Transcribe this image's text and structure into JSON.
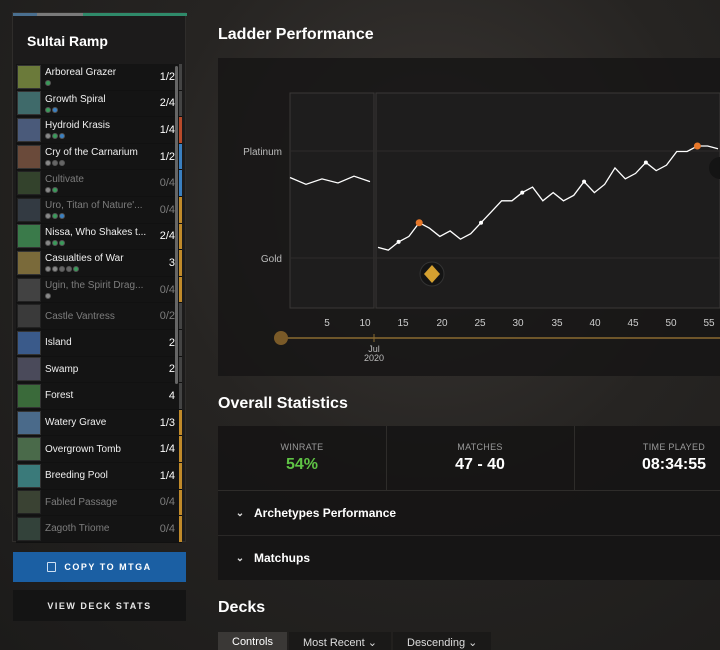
{
  "deck": {
    "title": "Sultai Ramp",
    "cards": [
      {
        "name": "Arboreal Grazer",
        "count": "1/2",
        "pips": [
          "#3a9a5a"
        ],
        "thumb": "#6b7a3a",
        "stripe": "#444",
        "dim": false
      },
      {
        "name": "Growth Spiral",
        "count": "2/4",
        "pips": [
          "#3a9a5a",
          "#3a7fc0"
        ],
        "thumb": "#3f6a6a",
        "stripe": "#444",
        "dim": false
      },
      {
        "name": "Hydroid Krasis",
        "count": "1/4",
        "pips": [
          "#888",
          "#3a9a5a",
          "#3a7fc0"
        ],
        "thumb": "#4a5a7a",
        "stripe": "#b84a2a",
        "dim": false
      },
      {
        "name": "Cry of the Carnarium",
        "count": "1/2",
        "pips": [
          "#888",
          "#666",
          "#666"
        ],
        "thumb": "#6a4a3a",
        "stripe": "#3a7fc0",
        "dim": false
      },
      {
        "name": "Cultivate",
        "count": "0/4",
        "pips": [
          "#888",
          "#3a9a5a"
        ],
        "thumb": "#5a7a4a",
        "stripe": "#3a7fc0",
        "dim": true
      },
      {
        "name": "Uro, Titan of Nature'...",
        "count": "0/4",
        "pips": [
          "#888",
          "#3a9a5a",
          "#3a7fc0"
        ],
        "thumb": "#5a6a7a",
        "stripe": "#c08a2a",
        "dim": true
      },
      {
        "name": "Nissa, Who Shakes t...",
        "count": "2/4",
        "pips": [
          "#888",
          "#3a9a5a",
          "#3a9a5a"
        ],
        "thumb": "#3a7a4a",
        "stripe": "#c08a2a",
        "dim": false
      },
      {
        "name": "Casualties of War",
        "count": "3",
        "pips": [
          "#888",
          "#888",
          "#666",
          "#666",
          "#3a9a5a"
        ],
        "thumb": "#7a6a3a",
        "stripe": "#c08a2a",
        "dim": false
      },
      {
        "name": "Ugin, the Spirit Drag...",
        "count": "0/4",
        "pips": [
          "#888"
        ],
        "thumb": "#7a7a7a",
        "stripe": "#c08a2a",
        "dim": true
      },
      {
        "name": "Castle Vantress",
        "count": "0/2",
        "pips": [],
        "thumb": "#6a6a6a",
        "stripe": "#444",
        "dim": true
      },
      {
        "name": "Island",
        "count": "2",
        "pips": [],
        "thumb": "#3a5a8a",
        "stripe": "#444",
        "dim": false
      },
      {
        "name": "Swamp",
        "count": "2",
        "pips": [],
        "thumb": "#4a4a5a",
        "stripe": "#444",
        "dim": false
      },
      {
        "name": "Forest",
        "count": "4",
        "pips": [],
        "thumb": "#3a6a3a",
        "stripe": "#444",
        "dim": false
      },
      {
        "name": "Watery Grave",
        "count": "1/3",
        "pips": [],
        "thumb": "#4a6a8a",
        "stripe": "#c08a2a",
        "dim": false
      },
      {
        "name": "Overgrown Tomb",
        "count": "1/4",
        "pips": [],
        "thumb": "#4a6a4a",
        "stripe": "#c08a2a",
        "dim": false
      },
      {
        "name": "Breeding Pool",
        "count": "1/4",
        "pips": [],
        "thumb": "#3a7a7a",
        "stripe": "#c08a2a",
        "dim": false
      },
      {
        "name": "Fabled Passage",
        "count": "0/4",
        "pips": [],
        "thumb": "#6a7a5a",
        "stripe": "#c08a2a",
        "dim": true
      },
      {
        "name": "Zagoth Triome",
        "count": "0/4",
        "pips": [],
        "thumb": "#5a7a6a",
        "stripe": "#c08a2a",
        "dim": true
      }
    ],
    "copy_label": "COPY TO MTGA",
    "stats_label": "VIEW DECK STATS"
  },
  "ladder": {
    "title": "Ladder Performance",
    "rank_labels": [
      "Platinum",
      "Gold"
    ],
    "x_ticks": [
      "5",
      "10",
      "15",
      "20",
      "25",
      "30",
      "35",
      "40",
      "45",
      "50",
      "55"
    ],
    "month_label": "Jul",
    "year_label": "2020",
    "pre_line": [
      0.77,
      0.72,
      0.76,
      0.73,
      0.78,
      0.74
    ],
    "main_line": [
      0.26,
      0.24,
      0.3,
      0.34,
      0.44,
      0.4,
      0.34,
      0.38,
      0.32,
      0.36,
      0.44,
      0.52,
      0.6,
      0.6,
      0.66,
      0.7,
      0.6,
      0.66,
      0.6,
      0.64,
      0.74,
      0.66,
      0.72,
      0.84,
      0.76,
      0.8,
      0.88,
      0.82,
      0.86,
      0.96,
      0.96,
      1.0,
      1.0,
      0.98
    ],
    "markers": [
      {
        "index": 4,
        "type": "orange"
      },
      {
        "index": 31,
        "type": "orange"
      }
    ],
    "colors": {
      "line": "#ffffff",
      "accent": "#e8782a",
      "gold": "#d4a030",
      "axis": "#8a6a30"
    }
  },
  "overall": {
    "title": "Overall Statistics",
    "winrate_label": "WINRATE",
    "winrate": "54%",
    "matches_label": "MATCHES",
    "matches": "47 - 40",
    "time_label": "TIME PLAYED",
    "time": "08:34:55",
    "archetypes_label": "Archetypes Performance",
    "matchups_label": "Matchups",
    "colors": {
      "winrate": "#5fc345"
    }
  },
  "decks": {
    "title": "Decks",
    "tabs": [
      {
        "label": "Controls"
      },
      {
        "label": "Most Recent"
      },
      {
        "label": "Descending"
      }
    ]
  }
}
